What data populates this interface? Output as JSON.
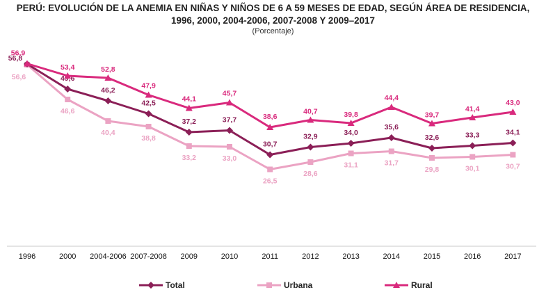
{
  "colors": {
    "total": "#8b1f57",
    "urbana": "#eba3c3",
    "rural": "#d92a7d"
  },
  "chart_data": {
    "type": "line",
    "title": "PERÚ: EVOLUCIÓN DE LA ANEMIA EN NIÑAS Y NIÑOS DE 6 A 59 MESES DE EDAD, SEGÚN ÁREA DE RESIDENCIA,",
    "title_line2": "1996, 2000, 2004-2006, 2007-2008 Y 2009–2017",
    "subtitle": "(Porcentaje)",
    "categories": [
      "1996",
      "2000",
      "2004-2006",
      "2007-2008",
      "2009",
      "2010",
      "2011",
      "2012",
      "2013",
      "2014",
      "2015",
      "2016",
      "2017"
    ],
    "series": [
      {
        "name": "Total",
        "values": [
          56.8,
          49.6,
          46.2,
          42.5,
          37.2,
          37.7,
          30.7,
          32.9,
          34.0,
          35.6,
          32.6,
          33.3,
          34.1
        ],
        "labels": [
          "56,8",
          "49,6",
          "46,2",
          "42,5",
          "37,2",
          "37,7",
          "30,7",
          "32,9",
          "34,0",
          "35,6",
          "32,6",
          "33,3",
          "34,1"
        ]
      },
      {
        "name": "Urbana",
        "values": [
          56.6,
          46.6,
          40.4,
          38.8,
          33.2,
          33.0,
          26.5,
          28.6,
          31.1,
          31.7,
          29.8,
          30.1,
          30.7
        ],
        "labels": [
          "56,6",
          "46,6",
          "40,4",
          "38,8",
          "33,2",
          "33,0",
          "26,5",
          "28,6",
          "31,1",
          "31,7",
          "29,8",
          "30,1",
          "30,7"
        ]
      },
      {
        "name": "Rural",
        "values": [
          56.9,
          53.4,
          52.8,
          47.9,
          44.1,
          45.7,
          38.6,
          40.7,
          39.8,
          44.4,
          39.7,
          41.4,
          43.0
        ],
        "labels": [
          "56,9",
          "53,4",
          "52,8",
          "47,9",
          "44,1",
          "45,7",
          "38,6",
          "40,7",
          "39,8",
          "44,4",
          "39,7",
          "41,4",
          "43,0"
        ]
      }
    ],
    "legend_position": "bottom",
    "grid": false
  }
}
